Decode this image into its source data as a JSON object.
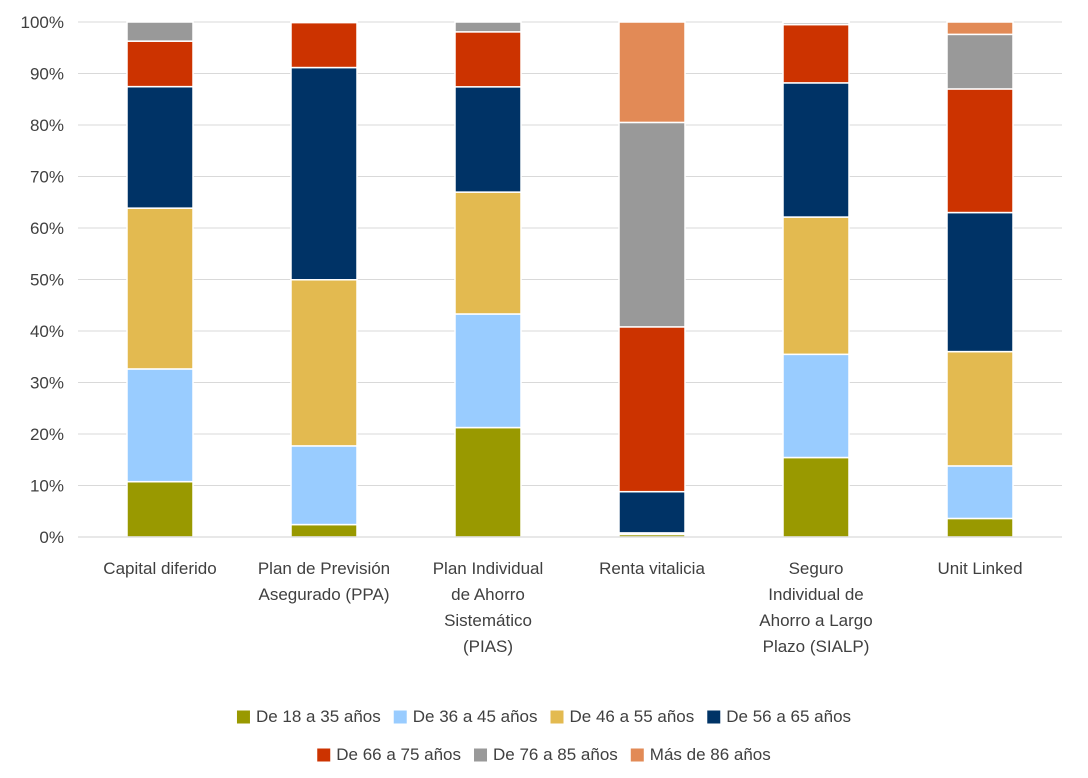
{
  "chart_data": {
    "type": "bar",
    "stacked": true,
    "normalized": true,
    "categories": [
      [
        "Capital diferido"
      ],
      [
        "Plan de Previsión",
        "Asegurado (PPA)"
      ],
      [
        "Plan Individual",
        "de Ahorro",
        "Sistemático",
        "(PIAS)"
      ],
      [
        "Renta vitalicia"
      ],
      [
        "Seguro",
        "Individual de",
        "Ahorro a Largo",
        "Plazo (SIALP)"
      ],
      [
        "Unit Linked"
      ]
    ],
    "series": [
      {
        "name": "De 18 a 35 años",
        "color": "#999900",
        "values": [
          10.7,
          2.4,
          21.1,
          0.5,
          15.4,
          3.6
        ]
      },
      {
        "name": "De 36 a 45 años",
        "color": "#99CCFF",
        "values": [
          21.8,
          15.2,
          21.9,
          0.2,
          20.0,
          10.2
        ]
      },
      {
        "name": "De 46 a 55 años",
        "color": "#E3BA50",
        "values": [
          31.1,
          32.1,
          23.5,
          0.1,
          26.6,
          22.2
        ]
      },
      {
        "name": "De 56 a 65 años",
        "color": "#003366",
        "values": [
          23.5,
          41.0,
          20.3,
          8.0,
          26.0,
          27.0
        ]
      },
      {
        "name": "De 66 a 75 años",
        "color": "#CC3300",
        "values": [
          8.8,
          8.7,
          10.6,
          32.0,
          11.3,
          24.0
        ]
      },
      {
        "name": "De 76 a 85 años",
        "color": "#999999",
        "values": [
          3.7,
          0.1,
          1.9,
          39.7,
          0.4,
          10.6
        ]
      },
      {
        "name": "Más de 86 años",
        "color": "#E28A56",
        "values": [
          0.0,
          0.0,
          0.0,
          19.5,
          0.1,
          2.4
        ]
      }
    ],
    "ylim": [
      0,
      100
    ],
    "yticks": [
      "0%",
      "10%",
      "20%",
      "30%",
      "40%",
      "50%",
      "60%",
      "70%",
      "80%",
      "90%",
      "100%"
    ],
    "grid": true,
    "legend_position": "bottom",
    "legend_rows": [
      [
        0,
        1,
        2,
        3
      ],
      [
        4,
        5,
        6
      ]
    ]
  }
}
